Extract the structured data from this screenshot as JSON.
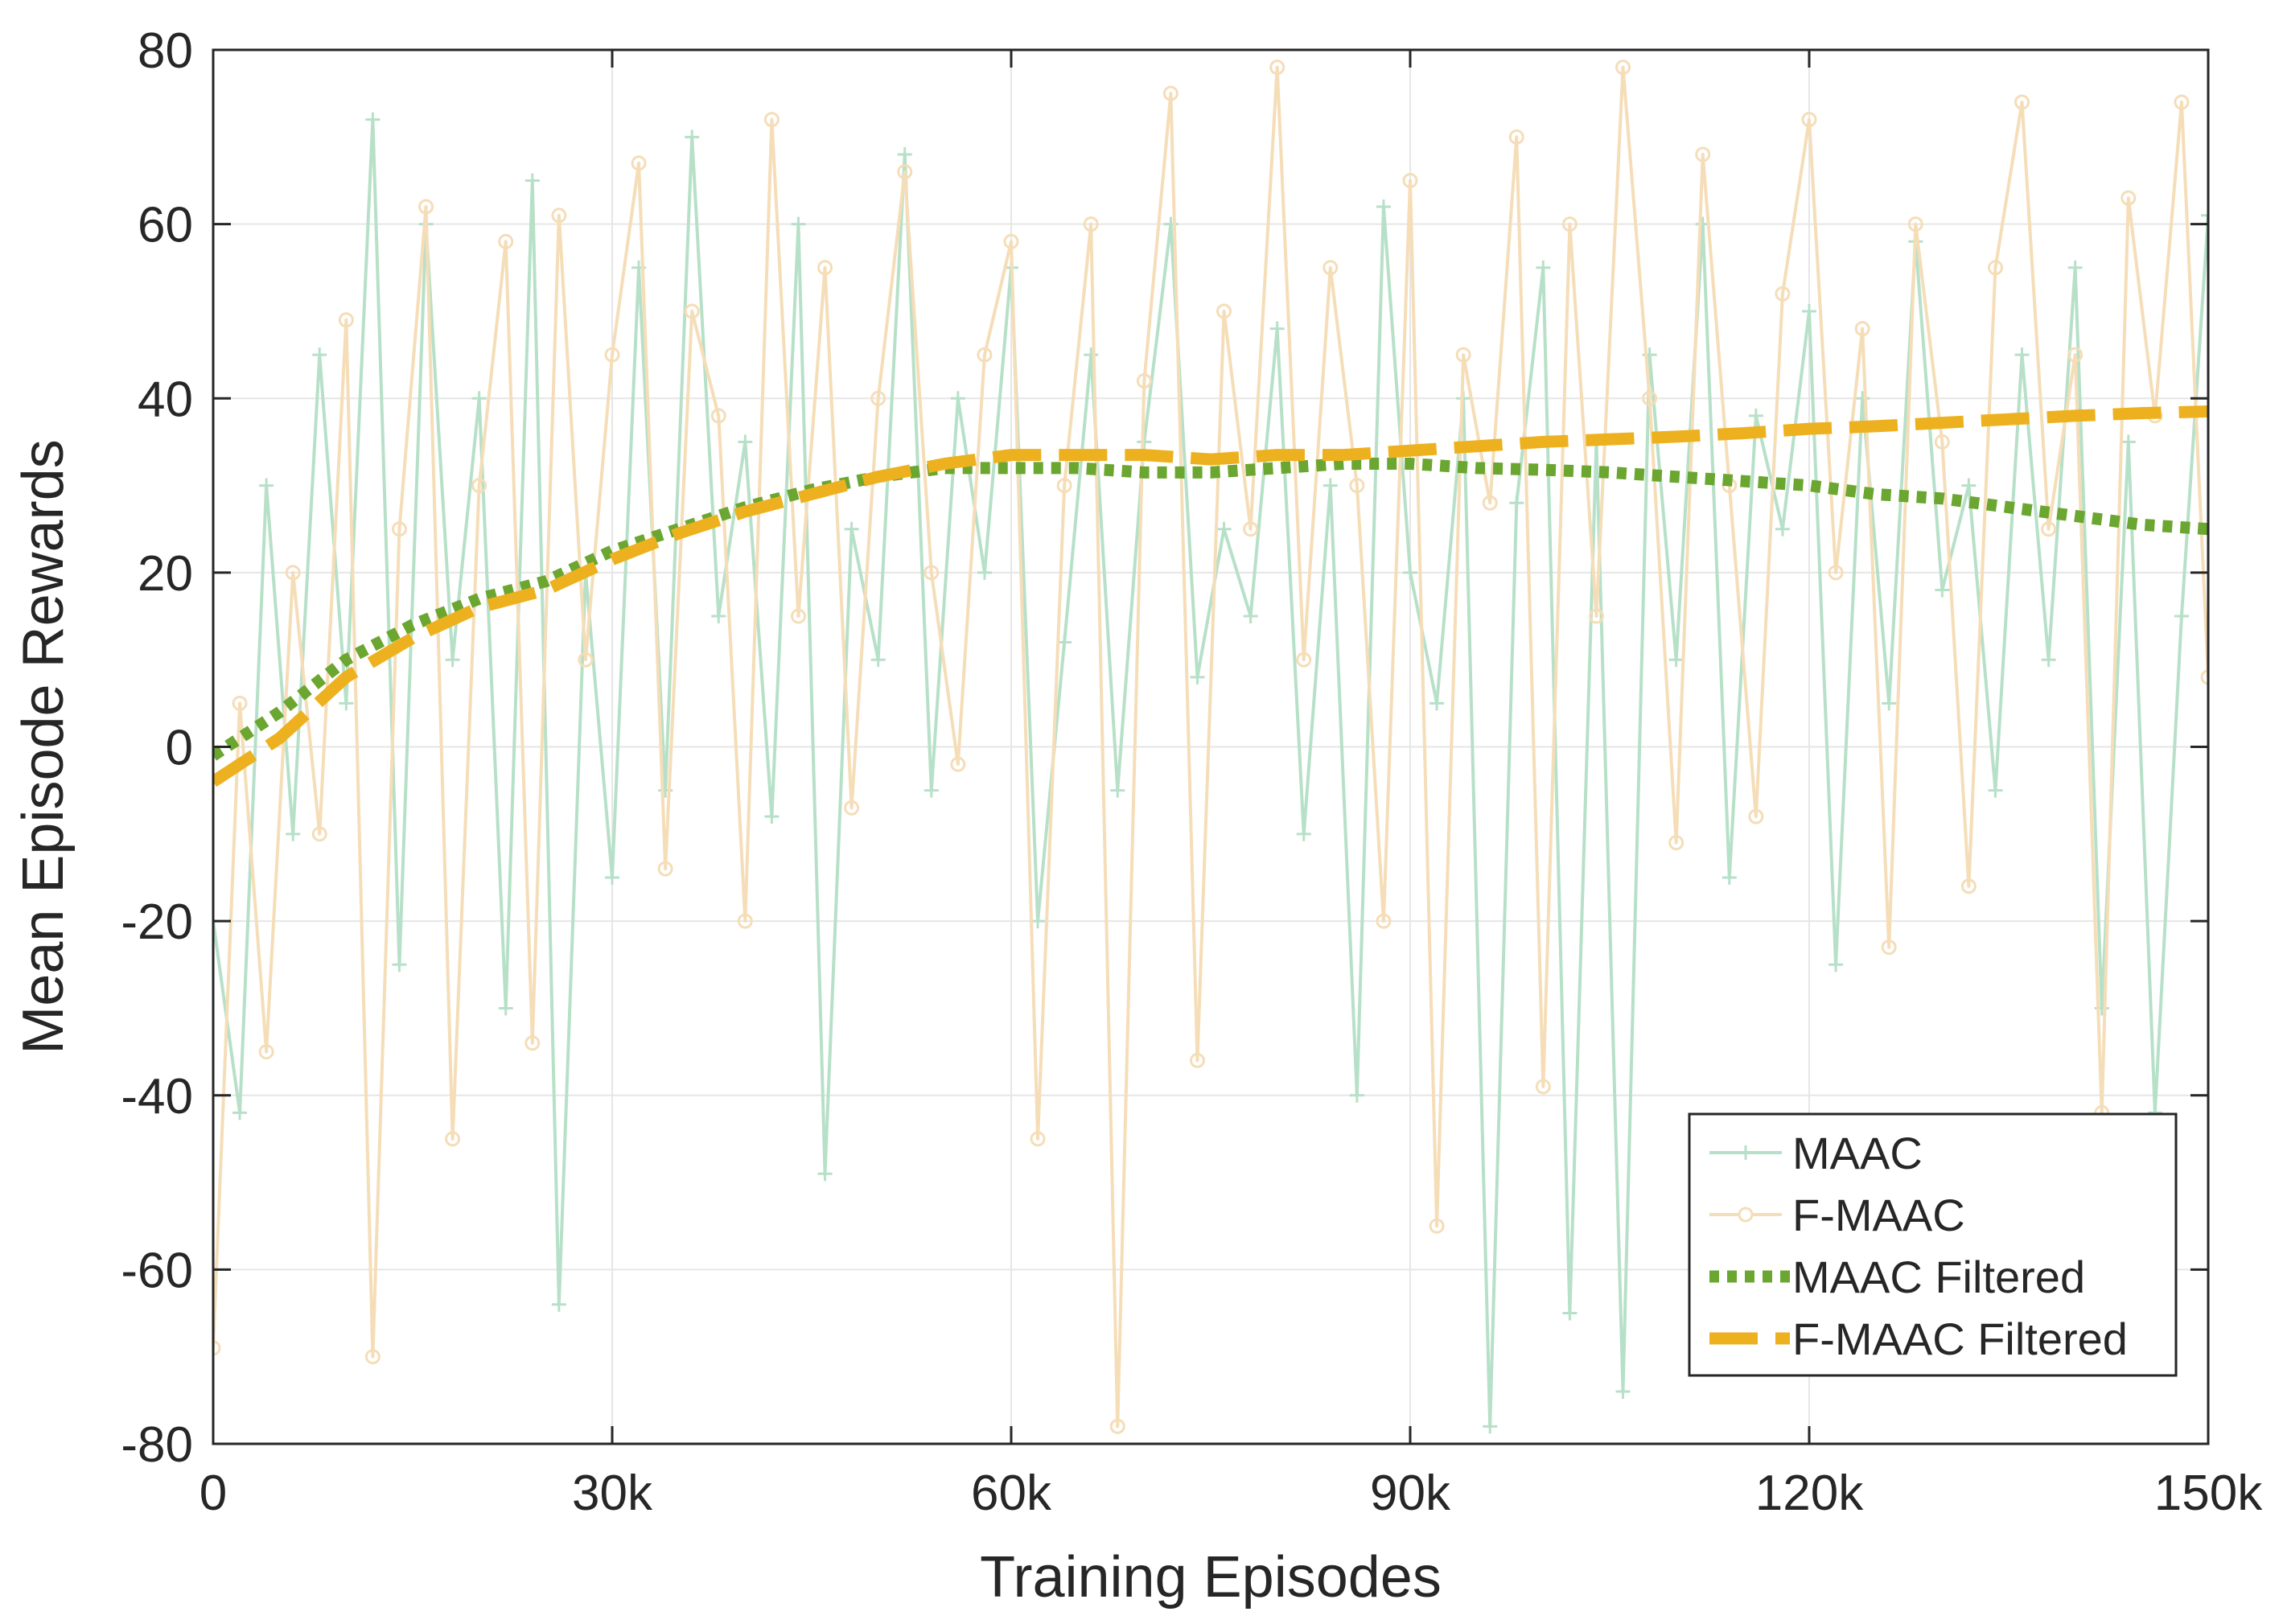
{
  "chart_data": {
    "type": "line",
    "title": "",
    "xlabel": "Training Episodes",
    "ylabel": "Mean Episode Rewards",
    "xlim": [
      0,
      150000
    ],
    "ylim": [
      -80,
      80
    ],
    "x_ticks": [
      0,
      30000,
      60000,
      90000,
      120000,
      150000
    ],
    "x_tick_labels": [
      "0",
      "30k",
      "60k",
      "90k",
      "120k",
      "150k"
    ],
    "y_ticks": [
      -80,
      -60,
      -40,
      -20,
      0,
      20,
      40,
      60,
      80
    ],
    "y_tick_labels": [
      "-80",
      "-60",
      "-40",
      "-20",
      "0",
      "20",
      "40",
      "60",
      "80"
    ],
    "grid": true,
    "legend_position": "bottom-right",
    "series": [
      {
        "name": "MAAC",
        "style": "thin line with plus markers, noisy raw rewards",
        "color": "#b7e0c8",
        "x": [
          0,
          2000,
          4000,
          6000,
          8000,
          10000,
          12000,
          14000,
          16000,
          18000,
          20000,
          22000,
          24000,
          26000,
          28000,
          30000,
          32000,
          34000,
          36000,
          38000,
          40000,
          42000,
          44000,
          46000,
          48000,
          50000,
          52000,
          54000,
          56000,
          58000,
          60000,
          62000,
          64000,
          66000,
          68000,
          70000,
          72000,
          74000,
          76000,
          78000,
          80000,
          82000,
          84000,
          86000,
          88000,
          90000,
          92000,
          94000,
          96000,
          98000,
          100000,
          102000,
          104000,
          106000,
          108000,
          110000,
          112000,
          114000,
          116000,
          118000,
          120000,
          122000,
          124000,
          126000,
          128000,
          130000,
          132000,
          134000,
          136000,
          138000,
          140000,
          142000,
          144000,
          146000,
          148000,
          150000
        ],
        "values": [
          -20,
          -42,
          30,
          -10,
          45,
          5,
          72,
          -25,
          60,
          10,
          40,
          -30,
          65,
          -64,
          20,
          -15,
          55,
          -5,
          70,
          15,
          35,
          -8,
          60,
          -49,
          25,
          10,
          68,
          -5,
          40,
          20,
          55,
          -20,
          12,
          45,
          -5,
          35,
          60,
          8,
          25,
          15,
          48,
          -10,
          30,
          -40,
          62,
          20,
          5,
          40,
          -78,
          28,
          55,
          -65,
          35,
          -74,
          45,
          10,
          60,
          -15,
          38,
          25,
          50,
          -25,
          40,
          5,
          58,
          18,
          30,
          -5,
          45,
          10,
          55,
          -30,
          35,
          -42,
          15,
          61
        ]
      },
      {
        "name": "F-MAAC",
        "style": "thin line with circle markers, noisy raw rewards",
        "color": "#f5ddb8",
        "x": [
          0,
          2000,
          4000,
          6000,
          8000,
          10000,
          12000,
          14000,
          16000,
          18000,
          20000,
          22000,
          24000,
          26000,
          28000,
          30000,
          32000,
          34000,
          36000,
          38000,
          40000,
          42000,
          44000,
          46000,
          48000,
          50000,
          52000,
          54000,
          56000,
          58000,
          60000,
          62000,
          64000,
          66000,
          68000,
          70000,
          72000,
          74000,
          76000,
          78000,
          80000,
          82000,
          84000,
          86000,
          88000,
          90000,
          92000,
          94000,
          96000,
          98000,
          100000,
          102000,
          104000,
          106000,
          108000,
          110000,
          112000,
          114000,
          116000,
          118000,
          120000,
          122000,
          124000,
          126000,
          128000,
          130000,
          132000,
          134000,
          136000,
          138000,
          140000,
          142000,
          144000,
          146000,
          148000,
          150000
        ],
        "values": [
          -69,
          5,
          -35,
          20,
          -10,
          49,
          -70,
          25,
          62,
          -45,
          30,
          58,
          -34,
          61,
          10,
          45,
          67,
          -14,
          50,
          38,
          -20,
          72,
          15,
          55,
          -7,
          40,
          66,
          20,
          -2,
          45,
          58,
          -45,
          30,
          60,
          -78,
          42,
          75,
          -36,
          50,
          25,
          78,
          10,
          55,
          30,
          -20,
          65,
          -55,
          45,
          28,
          70,
          -39,
          60,
          15,
          78,
          40,
          -11,
          68,
          30,
          -8,
          52,
          72,
          20,
          48,
          -23,
          60,
          35,
          -16,
          55,
          74,
          25,
          45,
          -42,
          63,
          38,
          74,
          8
        ]
      },
      {
        "name": "MAAC Filtered",
        "style": "thick dotted line",
        "color": "#6aa630",
        "x": [
          0,
          5000,
          10000,
          15000,
          20000,
          25000,
          30000,
          35000,
          40000,
          45000,
          50000,
          55000,
          60000,
          65000,
          70000,
          75000,
          80000,
          85000,
          90000,
          95000,
          100000,
          105000,
          110000,
          115000,
          120000,
          125000,
          130000,
          135000,
          140000,
          145000,
          150000
        ],
        "values": [
          -1,
          4,
          10,
          14,
          17,
          19,
          22.5,
          25,
          27.5,
          29.5,
          31,
          32,
          32,
          32,
          31.5,
          31.5,
          32,
          32.5,
          32.5,
          32,
          31.8,
          31.5,
          31,
          30.5,
          30,
          29,
          28.5,
          27.5,
          26.5,
          25.5,
          25
        ]
      },
      {
        "name": "F-MAAC Filtered",
        "style": "thick dashed line",
        "color": "#edb120",
        "x": [
          0,
          5000,
          10000,
          15000,
          20000,
          25000,
          30000,
          35000,
          40000,
          45000,
          50000,
          55000,
          60000,
          65000,
          70000,
          75000,
          80000,
          85000,
          90000,
          95000,
          100000,
          105000,
          110000,
          115000,
          120000,
          125000,
          130000,
          135000,
          140000,
          145000,
          150000
        ],
        "values": [
          -4,
          1,
          8,
          12.5,
          16,
          18,
          21.5,
          24.5,
          27,
          29,
          31,
          32.5,
          33.5,
          33.5,
          33.5,
          33,
          33.5,
          33.5,
          34,
          34.5,
          35,
          35.3,
          35.6,
          36,
          36.5,
          36.8,
          37.2,
          37.6,
          38,
          38.3,
          38.5
        ]
      }
    ]
  }
}
